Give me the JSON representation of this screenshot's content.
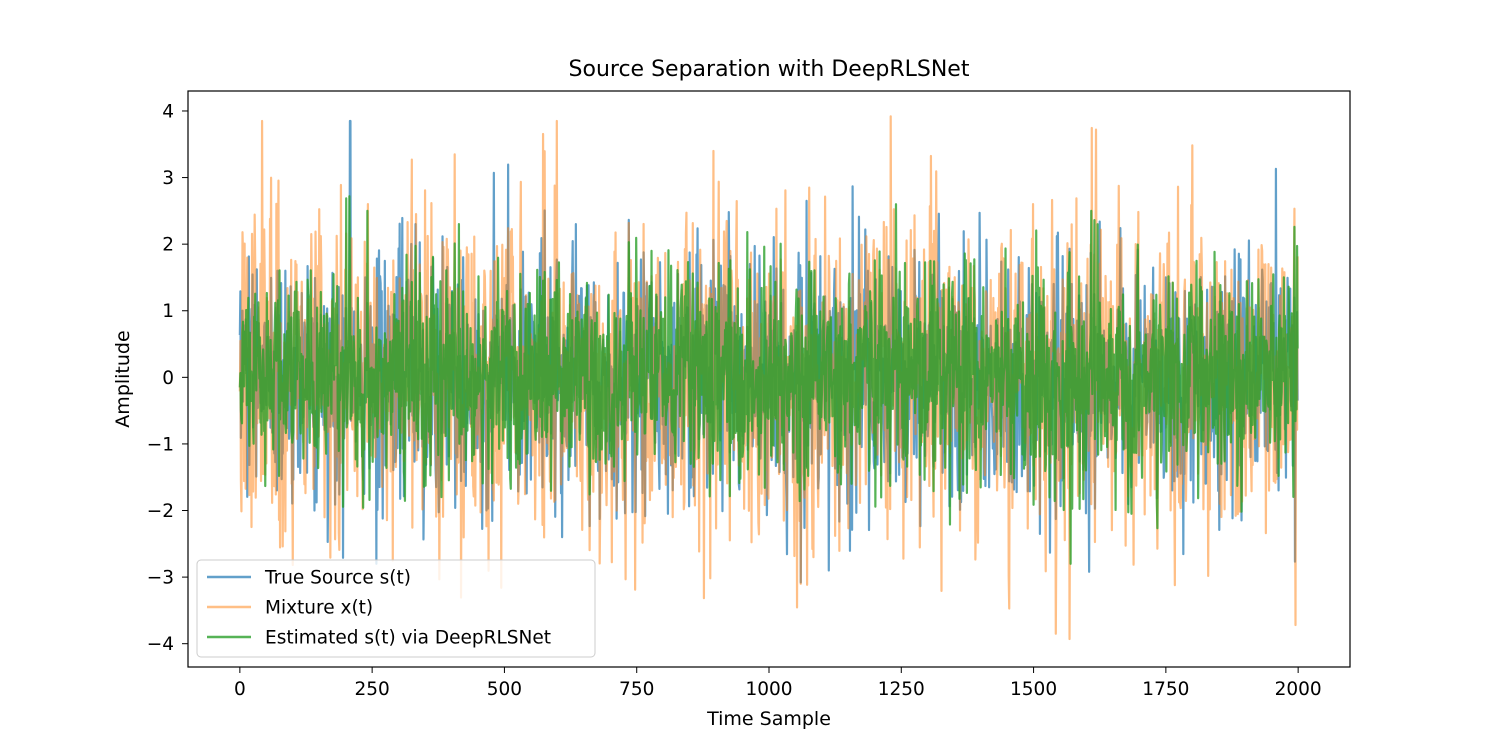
{
  "chart_data": {
    "type": "line",
    "title": "Source Separation with DeepRLSNet",
    "xlabel": "Time Sample",
    "ylabel": "Amplitude",
    "xlim": [
      -98,
      2098
    ],
    "ylim": [
      -4.35,
      4.3
    ],
    "x_ticks": [
      0,
      250,
      500,
      750,
      1000,
      1250,
      1500,
      1750,
      2000
    ],
    "x_tick_labels": [
      "0",
      "250",
      "500",
      "750",
      "1000",
      "1250",
      "1500",
      "1750",
      "2000"
    ],
    "y_ticks": [
      -4,
      -3,
      -2,
      -1,
      0,
      1,
      2,
      3,
      4
    ],
    "y_tick_labels": [
      "−4",
      "−3",
      "−2",
      "−1",
      "0",
      "1",
      "2",
      "3",
      "4"
    ],
    "grid": false,
    "legend_position": "lower-left",
    "x_range": [
      0,
      1999
    ],
    "n_points": 2000,
    "series": [
      {
        "name": "True Source s(t)",
        "color": "#1f77b4",
        "opacity": 0.7,
        "std": 0.95,
        "peaks": [
          [
            209,
            3.85
          ],
          [
            480,
            3.07
          ],
          [
            1958,
            3.13
          ],
          [
            258,
            -2.8
          ],
          [
            1113,
            -2.9
          ],
          [
            1605,
            -2.92
          ],
          [
            1060,
            -3.08
          ]
        ]
      },
      {
        "name": "Mixture x(t)",
        "color": "#ff7f0e",
        "opacity": 0.5,
        "std": 1.2,
        "peaks": [
          [
            1230,
            3.92
          ],
          [
            1618,
            3.72
          ],
          [
            325,
            3.27
          ],
          [
            895,
            3.4
          ],
          [
            1568,
            -3.93
          ],
          [
            1995,
            -3.72
          ],
          [
            1767,
            -3.12
          ],
          [
            1060,
            -3.1
          ]
        ]
      },
      {
        "name": "Estimated s(t) via DeepRLSNet",
        "color": "#2ca02c",
        "opacity": 0.8,
        "std": 0.8,
        "peaks": [
          [
            1240,
            2.6
          ],
          [
            1609,
            2.5
          ],
          [
            1570,
            -2.8
          ],
          [
            207,
            2.72
          ]
        ]
      }
    ]
  }
}
